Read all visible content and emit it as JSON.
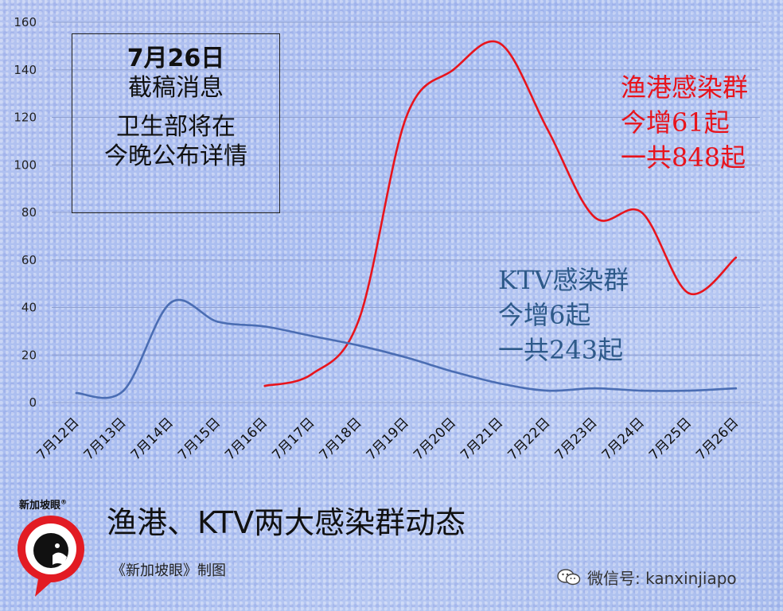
{
  "chart_data": {
    "type": "line",
    "title": "渔港、KTV两大感染群动态",
    "credit": "《新加坡眼》制图",
    "categories": [
      "7月12日",
      "7月13日",
      "7月14日",
      "7月15日",
      "7月16日",
      "7月17日",
      "7月18日",
      "7月19日",
      "7月20日",
      "7月21日",
      "7月22日",
      "7月23日",
      "7月24日",
      "7月25日",
      "7月26日"
    ],
    "yticks": [
      0,
      20,
      40,
      60,
      80,
      100,
      120,
      140,
      160
    ],
    "ylim": [
      0,
      160
    ],
    "grid": true,
    "series": [
      {
        "name": "渔港感染群",
        "color": "#e8141c",
        "values": [
          null,
          null,
          null,
          null,
          7,
          12,
          35,
          120,
          140,
          151,
          115,
          78,
          80,
          46,
          61
        ]
      },
      {
        "name": "KTV感染群",
        "color": "#4a6db3",
        "values": [
          4,
          5,
          42,
          34,
          32,
          28,
          24,
          19,
          13,
          8,
          5,
          6,
          5,
          5,
          6
        ]
      }
    ]
  },
  "notice": {
    "line1": "7月26日",
    "line2": "截稿消息",
    "line3": "卫生部将在",
    "line4": "今晚公布详情"
  },
  "annotations": {
    "fishery": {
      "line1": "渔港感染群",
      "line2": "今增61起",
      "line3": "一共848起",
      "color": "#e8141c"
    },
    "ktv": {
      "line1": "KTV感染群",
      "line2": "今增6起",
      "line3": "一共243起",
      "color": "#2e5a8a"
    }
  },
  "logo": {
    "text": "新加坡眼",
    "mark": "®"
  },
  "watermark": {
    "text": "微信号: kanxinjiapo",
    "icon": "wechat-icon"
  }
}
